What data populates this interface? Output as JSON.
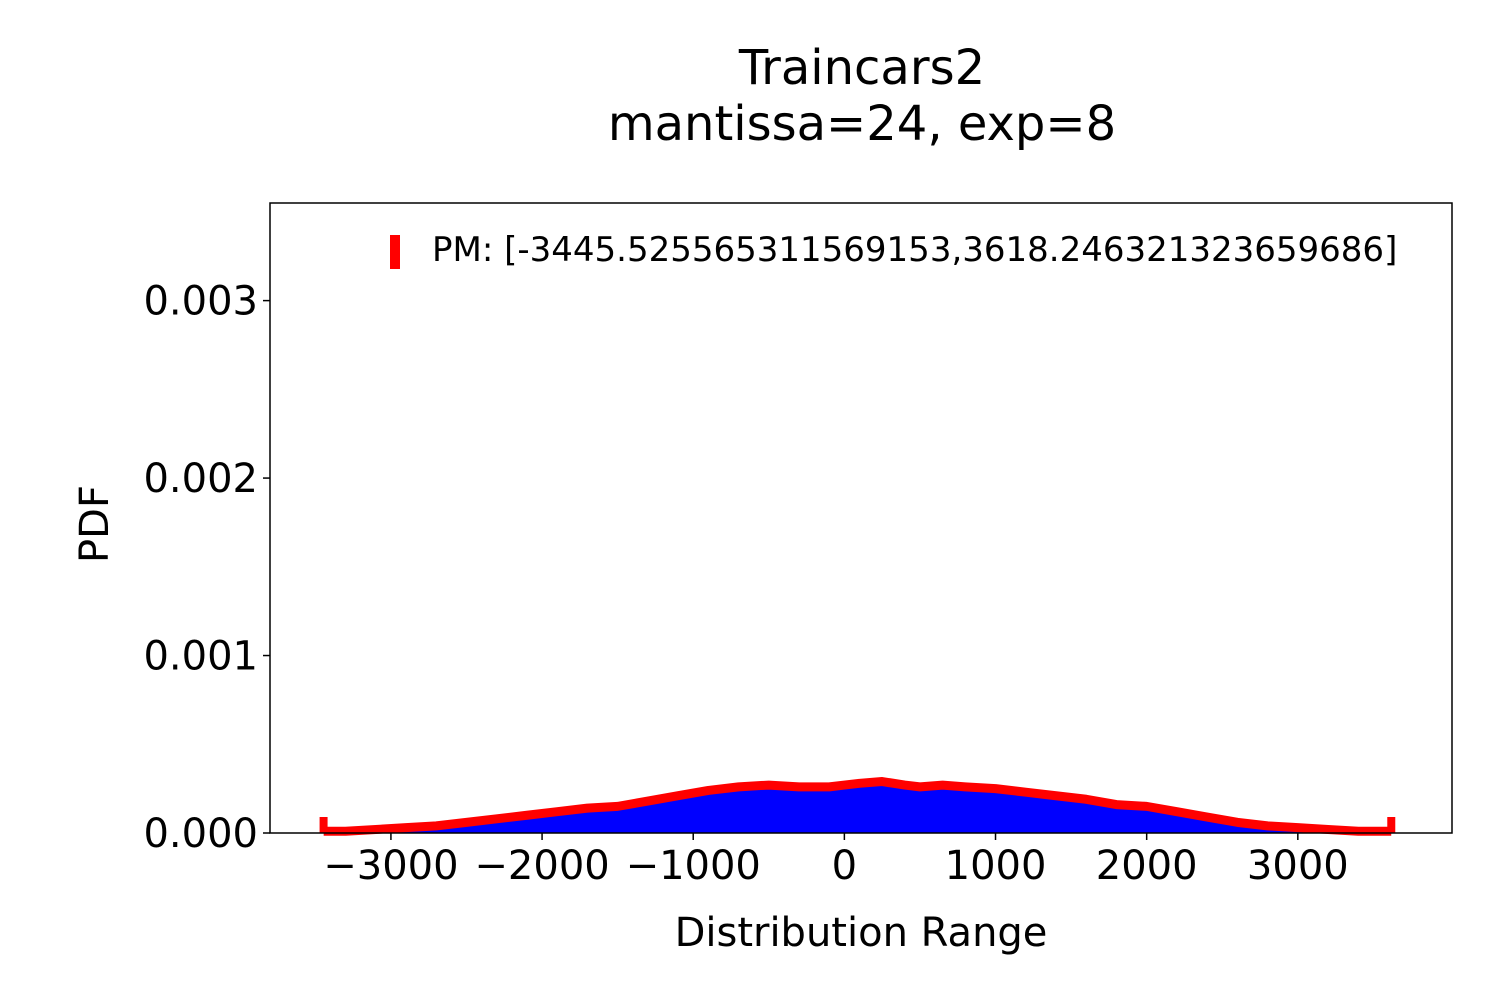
{
  "chart_data": {
    "type": "area",
    "title_line1": "Traincars2",
    "title_line2": "mantissa=24, exp=8",
    "xlabel": "Distribution Range",
    "ylabel": "PDF",
    "xlim": [
      -3800,
      4020
    ],
    "ylim": [
      0,
      0.00355
    ],
    "xticks": [
      -3000,
      -2000,
      -1000,
      0,
      1000,
      2000,
      3000
    ],
    "xtick_labels": [
      "−3000",
      "−2000",
      "−1000",
      "0",
      "1000",
      "2000",
      "3000"
    ],
    "yticks": [
      0,
      0.001,
      0.002,
      0.003
    ],
    "ytick_labels": [
      "0.000",
      "0.001",
      "0.002",
      "0.003"
    ],
    "grid": false,
    "legend": {
      "placement": "top-right",
      "label": "PM: [-3445.525565311569153,3618.246321323659686]"
    },
    "pm_range": [
      -3445.525565311569,
      3618.2463213236597
    ],
    "series": [
      {
        "kind": "histogram",
        "color": "#0000ff",
        "x": [
          -3445,
          -3300,
          -3100,
          -2900,
          -2700,
          -2500,
          -2300,
          -2100,
          -1900,
          -1700,
          -1500,
          -1300,
          -1100,
          -900,
          -700,
          -500,
          -300,
          -100,
          0,
          100,
          250,
          400,
          500,
          650,
          800,
          1000,
          1200,
          1400,
          1600,
          1800,
          2000,
          2200,
          2400,
          2600,
          2800,
          3000,
          3200,
          3400,
          3618
        ],
        "values": [
          1e-05,
          1e-05,
          2e-05,
          3e-05,
          4e-05,
          6e-05,
          8e-05,
          0.0001,
          0.00012,
          0.00014,
          0.00015,
          0.00018,
          0.00021,
          0.00024,
          0.00026,
          0.00027,
          0.00026,
          0.00026,
          0.00027,
          0.00028,
          0.00029,
          0.00027,
          0.00026,
          0.00027,
          0.00026,
          0.00025,
          0.00023,
          0.00021,
          0.00019,
          0.00016,
          0.00015,
          0.00012,
          9e-05,
          6e-05,
          4e-05,
          3e-05,
          2e-05,
          1e-05,
          1e-05
        ]
      },
      {
        "kind": "line",
        "color": "#ff0000",
        "x": [
          -3445,
          -3300,
          -3100,
          -2900,
          -2700,
          -2500,
          -2300,
          -2100,
          -1900,
          -1700,
          -1500,
          -1300,
          -1100,
          -900,
          -700,
          -500,
          -300,
          -100,
          0,
          100,
          250,
          400,
          500,
          650,
          800,
          1000,
          1200,
          1400,
          1600,
          1800,
          2000,
          2200,
          2400,
          2600,
          2800,
          3000,
          3200,
          3400,
          3618
        ],
        "values": [
          1e-05,
          1e-05,
          2e-05,
          3e-05,
          4e-05,
          6e-05,
          8e-05,
          0.0001,
          0.00012,
          0.00014,
          0.00015,
          0.00018,
          0.00021,
          0.00024,
          0.00026,
          0.00027,
          0.00026,
          0.00026,
          0.00027,
          0.00028,
          0.00029,
          0.00027,
          0.00026,
          0.00027,
          0.00026,
          0.00025,
          0.00023,
          0.00021,
          0.00019,
          0.00016,
          0.00015,
          0.00012,
          9e-05,
          6e-05,
          4e-05,
          3e-05,
          2e-05,
          1e-05,
          1e-05
        ]
      }
    ]
  }
}
